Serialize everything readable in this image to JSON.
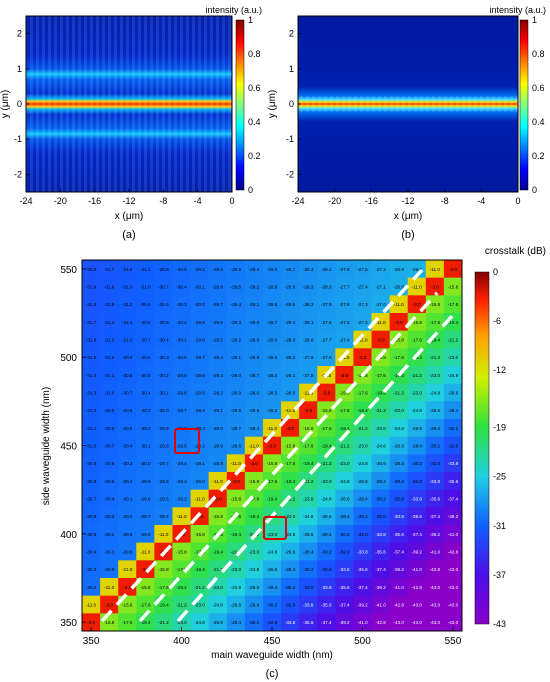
{
  "chart_data": [
    {
      "panel": "a",
      "type": "heatmap",
      "caption": "(a)",
      "xlabel": "x (μm)",
      "ylabel": "y (μm)",
      "xlim": [
        -24,
        0
      ],
      "ylim": [
        -2.5,
        2.5
      ],
      "xticks": [
        "-24",
        "-20",
        "-16",
        "-12",
        "-8",
        "-4",
        "0"
      ],
      "yticks": [
        "-2",
        "-1",
        "0",
        "1",
        "2"
      ],
      "colorbar": {
        "label": "intensity (a.u.)",
        "range": [
          0,
          1
        ],
        "ticks": [
          "0",
          "0.2",
          "0.4",
          "0.6",
          "0.8",
          "1"
        ]
      },
      "description_values": {
        "core_center_y": 0,
        "side_lobes_y": [
          -0.75,
          0.75
        ]
      }
    },
    {
      "panel": "b",
      "type": "heatmap",
      "caption": "(b)",
      "xlabel": "x (μm)",
      "ylabel": "y (μm)",
      "xlim": [
        -24,
        0
      ],
      "ylim": [
        -2.5,
        2.5
      ],
      "xticks": [
        "-24",
        "-20",
        "-16",
        "-12",
        "-8",
        "-4",
        "0"
      ],
      "yticks": [
        "-2",
        "-1",
        "0",
        "1",
        "2"
      ],
      "colorbar": {
        "label": "intensity (a.u.)",
        "range": [
          0,
          1
        ],
        "ticks": [
          "0",
          "0.2",
          "0.4",
          "0.6",
          "0.8",
          "1"
        ]
      },
      "description_values": {
        "core_center_y": 0
      }
    },
    {
      "panel": "c",
      "type": "heatmap",
      "caption": "(c)",
      "xlabel": "main waveguide width (nm)",
      "ylabel": "side waveguide width (nm)",
      "x_range_nm": [
        345,
        555
      ],
      "y_range_nm": [
        345,
        555
      ],
      "xticks": [
        "350",
        "400",
        "450",
        "500",
        "550"
      ],
      "yticks": [
        "350",
        "400",
        "450",
        "500",
        "550"
      ],
      "colorbar": {
        "label": "crosstalk (dB)",
        "range": [
          -43,
          0
        ],
        "ticks": [
          "0",
          "-6",
          "-12",
          "-19",
          "-25",
          "-31",
          "-37",
          "-43"
        ]
      },
      "highlighted_cells_nm": [
        [
          400,
          450
        ],
        [
          450,
          400
        ]
      ],
      "cell_values_note": "cell labels of the form -29.7, -31.1, ... drawn in each grid cell"
    }
  ]
}
